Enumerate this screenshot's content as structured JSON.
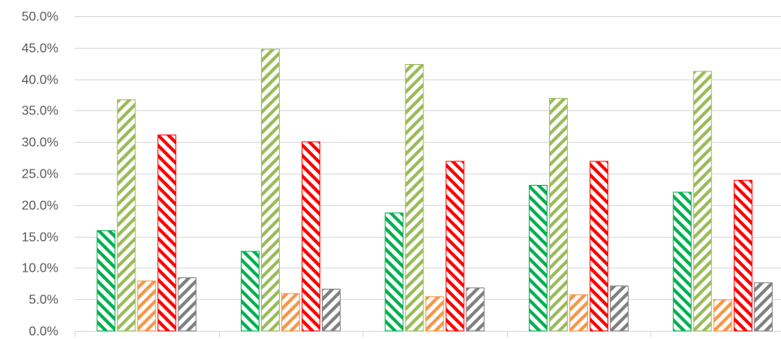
{
  "chart_data": {
    "type": "bar",
    "title": "",
    "xlabel": "",
    "ylabel": "",
    "ylim": [
      0,
      0.5
    ],
    "yticks": [
      0,
      0.05,
      0.1,
      0.15,
      0.2,
      0.25,
      0.3,
      0.35,
      0.4,
      0.45,
      0.5
    ],
    "ytick_labels": [
      "0.0%",
      "5.0%",
      "10.0%",
      "15.0%",
      "20.0%",
      "25.0%",
      "30.0%",
      "35.0%",
      "40.0%",
      "45.0%",
      "50.0%"
    ],
    "grid": true,
    "legend": "none",
    "categories": [
      "",
      "",
      "",
      "",
      ""
    ],
    "series": [
      {
        "color": "#00b050",
        "pattern": "wide-downward-diagonal",
        "values": [
          0.16,
          0.127,
          0.188,
          0.232,
          0.221
        ]
      },
      {
        "color": "#9bbb59",
        "pattern": "wide-upward-diagonal",
        "values": [
          0.368,
          0.448,
          0.424,
          0.37,
          0.413
        ]
      },
      {
        "color": "#f79646",
        "pattern": "wide-upward-diagonal",
        "values": [
          0.08,
          0.06,
          0.055,
          0.058,
          0.05
        ]
      },
      {
        "color": "#ff0000",
        "pattern": "wide-downward-diagonal",
        "values": [
          0.312,
          0.301,
          0.27,
          0.27,
          0.24
        ]
      },
      {
        "color": "#808080",
        "pattern": "wide-upward-diagonal",
        "values": [
          0.085,
          0.067,
          0.069,
          0.072,
          0.077
        ]
      }
    ]
  }
}
